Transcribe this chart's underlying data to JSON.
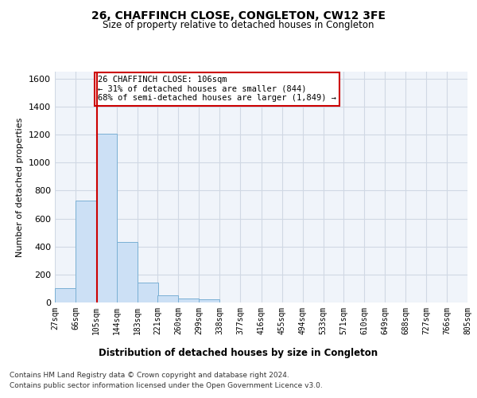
{
  "title": "26, CHAFFINCH CLOSE, CONGLETON, CW12 3FE",
  "subtitle": "Size of property relative to detached houses in Congleton",
  "xlabel": "Distribution of detached houses by size in Congleton",
  "ylabel": "Number of detached properties",
  "footer_line1": "Contains HM Land Registry data © Crown copyright and database right 2024.",
  "footer_line2": "Contains public sector information licensed under the Open Government Licence v3.0.",
  "bin_edges": [
    27,
    66,
    105,
    144,
    183,
    221,
    260,
    299,
    338,
    377,
    416,
    455,
    494,
    533,
    571,
    610,
    649,
    688,
    727,
    766,
    805
  ],
  "bar_heights": [
    105,
    730,
    1205,
    435,
    145,
    50,
    30,
    20,
    0,
    0,
    0,
    0,
    0,
    0,
    0,
    0,
    0,
    0,
    0,
    0
  ],
  "bar_color": "#cce0f5",
  "bar_edge_color": "#7ab0d4",
  "grid_color": "#d0d8e4",
  "property_line_x": 106,
  "property_line_color": "#cc0000",
  "annotation_text": "26 CHAFFINCH CLOSE: 106sqm\n← 31% of detached houses are smaller (844)\n68% of semi-detached houses are larger (1,849) →",
  "annotation_box_color": "#cc0000",
  "ylim": [
    0,
    1650
  ],
  "yticks": [
    0,
    200,
    400,
    600,
    800,
    1000,
    1200,
    1400,
    1600
  ],
  "tick_labels": [
    "27sqm",
    "66sqm",
    "105sqm",
    "144sqm",
    "183sqm",
    "221sqm",
    "260sqm",
    "299sqm",
    "338sqm",
    "377sqm",
    "416sqm",
    "455sqm",
    "494sqm",
    "533sqm",
    "571sqm",
    "610sqm",
    "649sqm",
    "688sqm",
    "727sqm",
    "766sqm",
    "805sqm"
  ],
  "background_color": "#ffffff",
  "plot_bg_color": "#f0f4fa"
}
